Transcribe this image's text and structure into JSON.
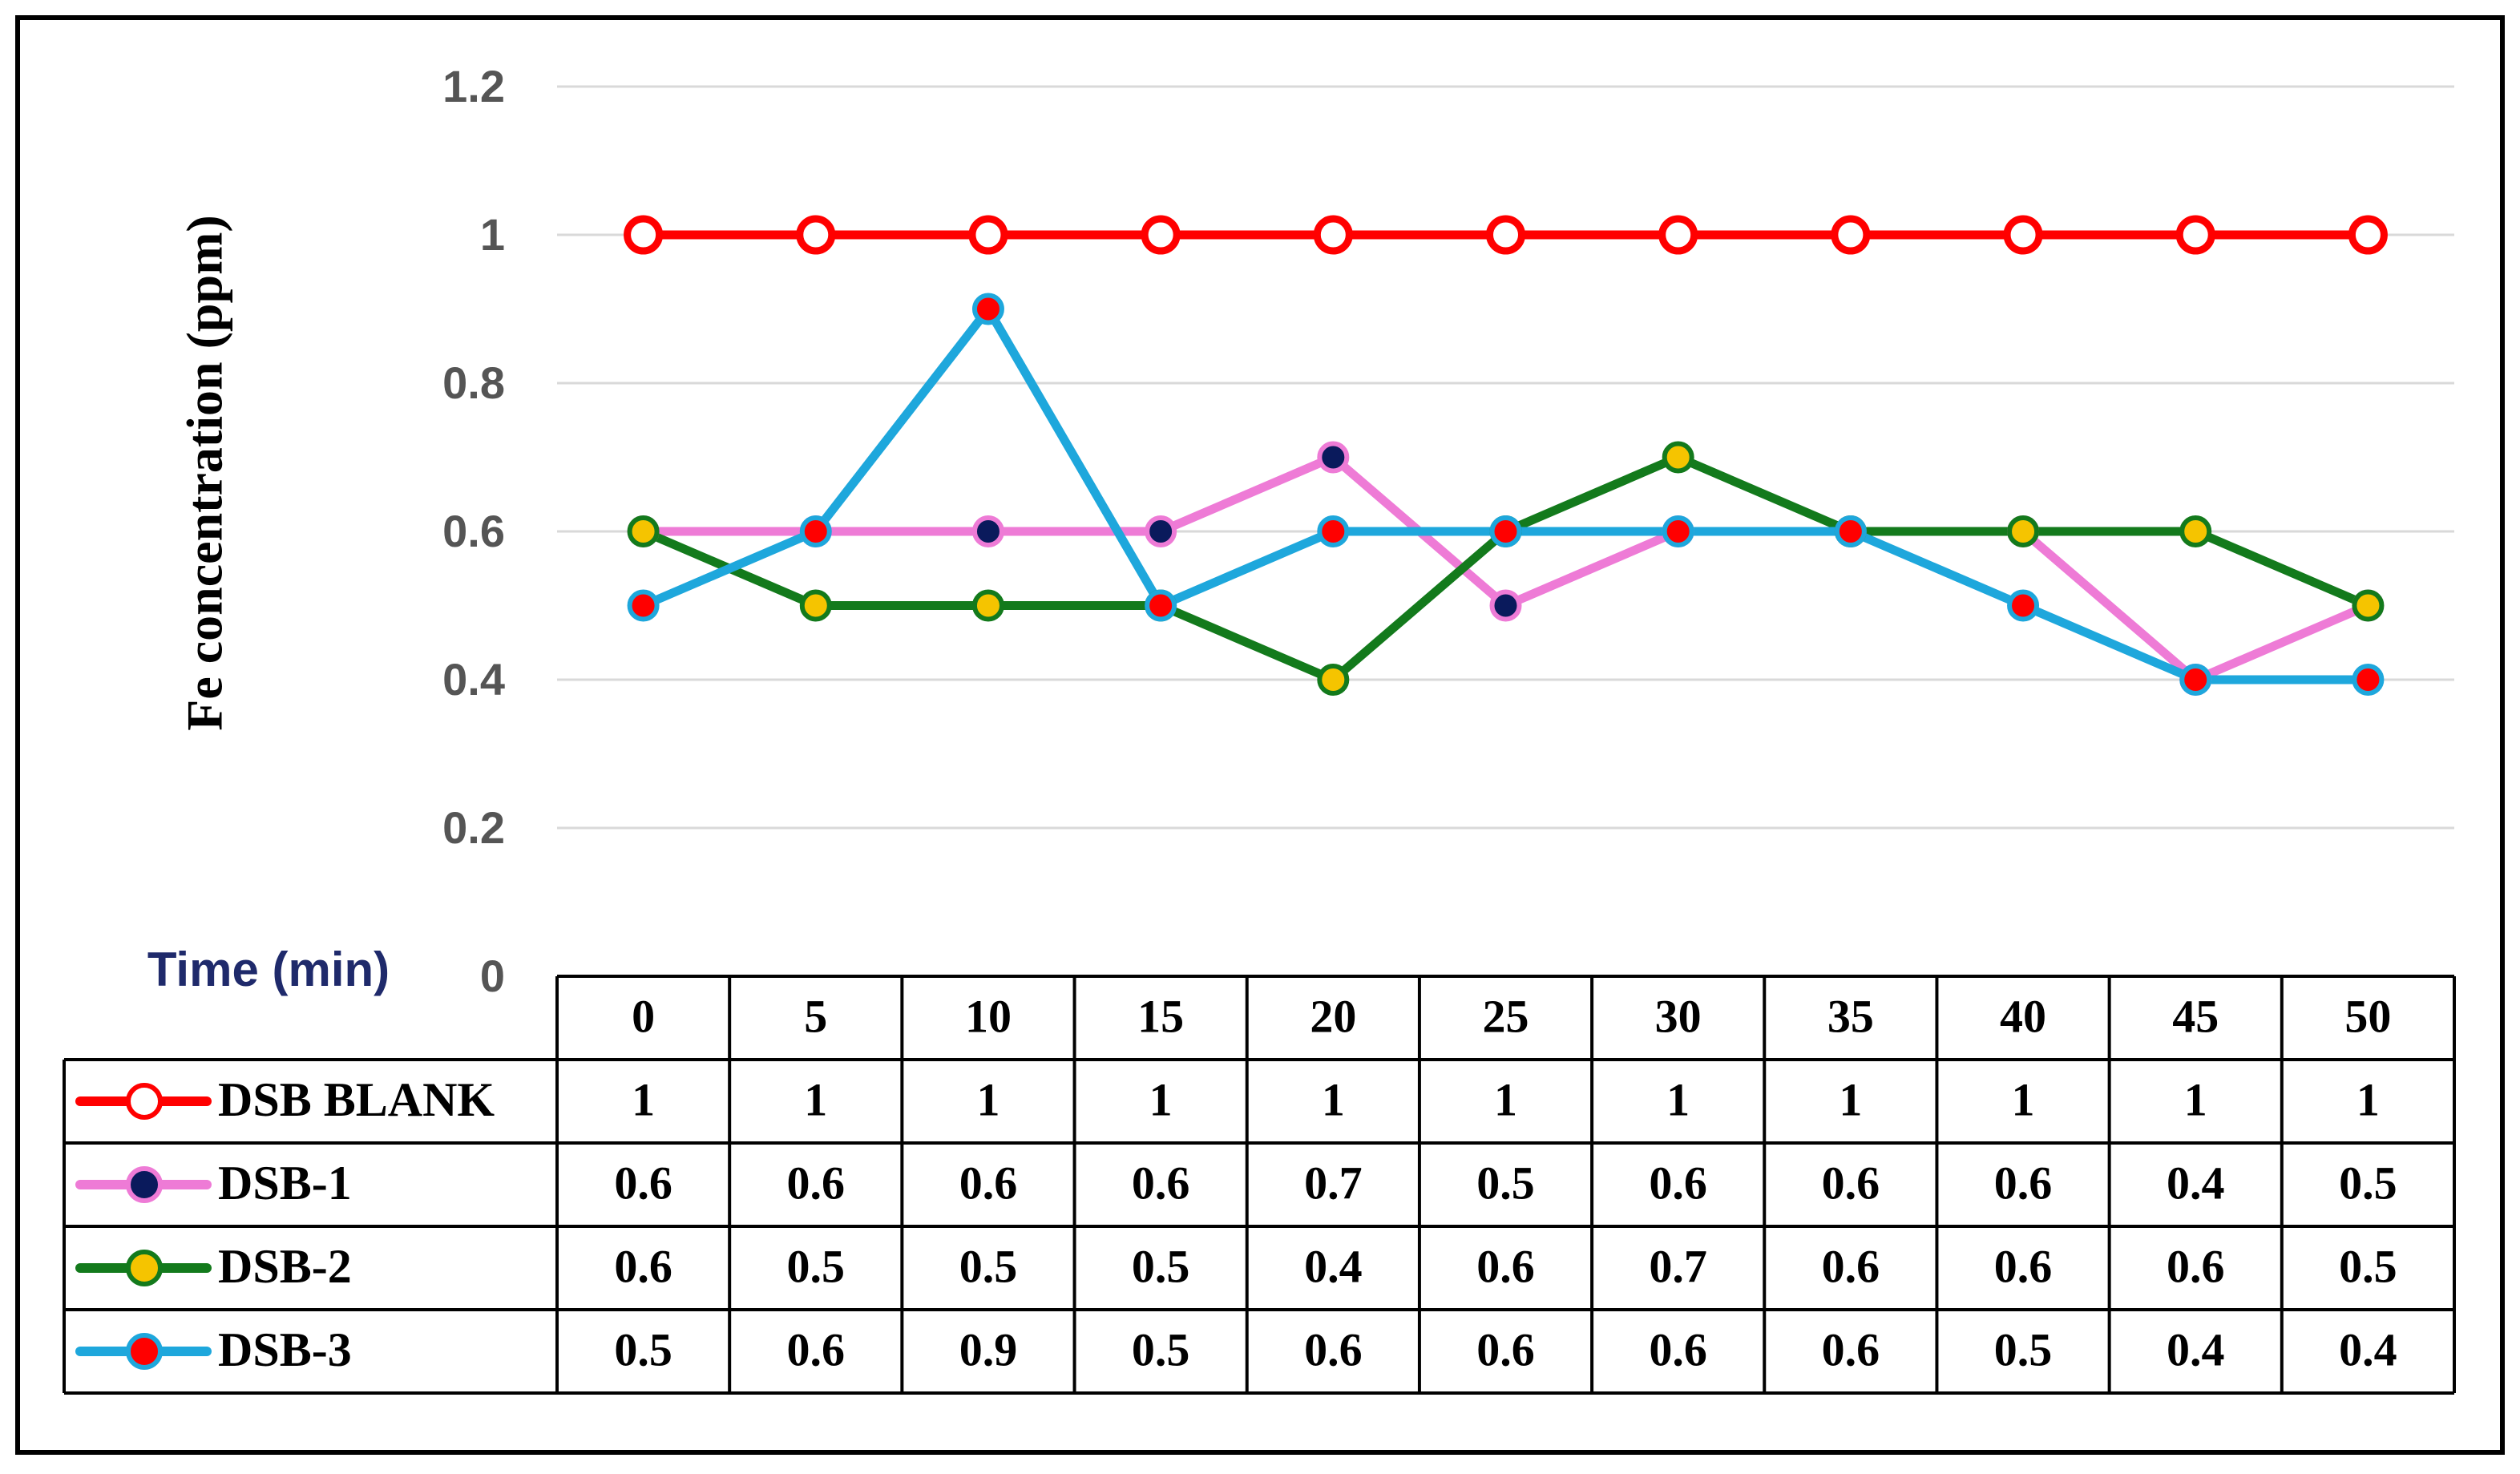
{
  "chart_data": {
    "type": "line",
    "ylabel": "Fe concentration  (ppm)",
    "xlabel": "Time (min)",
    "ylim": [
      0,
      1.2
    ],
    "yticks": [
      "0",
      "0.2",
      "0.4",
      "0.6",
      "0.8",
      "1",
      "1.2"
    ],
    "grid": true,
    "legend": "data table",
    "categories": [
      "0",
      "5",
      "10",
      "15",
      "20",
      "25",
      "30",
      "35",
      "40",
      "45",
      "50"
    ],
    "series": [
      {
        "name": "DSB BLANK",
        "line_color": "#ff0000",
        "marker_fill": "#ffffff",
        "marker_stroke": "#ff0000",
        "values": [
          1,
          1,
          1,
          1,
          1,
          1,
          1,
          1,
          1,
          1,
          1
        ],
        "labels": [
          "1",
          "1",
          "1",
          "1",
          "1",
          "1",
          "1",
          "1",
          "1",
          "1",
          "1"
        ]
      },
      {
        "name": "DSB-1",
        "line_color": "#ee7bd6",
        "marker_fill": "#0a1a5c",
        "marker_stroke": "#ee7bd6",
        "values": [
          0.6,
          0.6,
          0.6,
          0.6,
          0.7,
          0.5,
          0.6,
          0.6,
          0.6,
          0.4,
          0.5
        ],
        "labels": [
          "0.6",
          "0.6",
          "0.6",
          "0.6",
          "0.7",
          "0.5",
          "0.6",
          "0.6",
          "0.6",
          "0.4",
          "0.5"
        ]
      },
      {
        "name": "DSB-2",
        "line_color": "#137a1c",
        "marker_fill": "#f5c400",
        "marker_stroke": "#137a1c",
        "values": [
          0.6,
          0.5,
          0.5,
          0.5,
          0.4,
          0.6,
          0.7,
          0.6,
          0.6,
          0.6,
          0.5
        ],
        "labels": [
          "0.6",
          "0.5",
          "0.5",
          "0.5",
          "0.4",
          "0.6",
          "0.7",
          "0.6",
          "0.6",
          "0.6",
          "0.5"
        ]
      },
      {
        "name": "DSB-3",
        "line_color": "#1ea7dc",
        "marker_fill": "#ff0000",
        "marker_stroke": "#1ea7dc",
        "values": [
          0.5,
          0.6,
          0.9,
          0.5,
          0.6,
          0.6,
          0.6,
          0.6,
          0.5,
          0.4,
          0.4
        ],
        "labels": [
          "0.5",
          "0.6",
          "0.9",
          "0.5",
          "0.6",
          "0.6",
          "0.6",
          "0.6",
          "0.5",
          "0.4",
          "0.4"
        ]
      }
    ]
  }
}
